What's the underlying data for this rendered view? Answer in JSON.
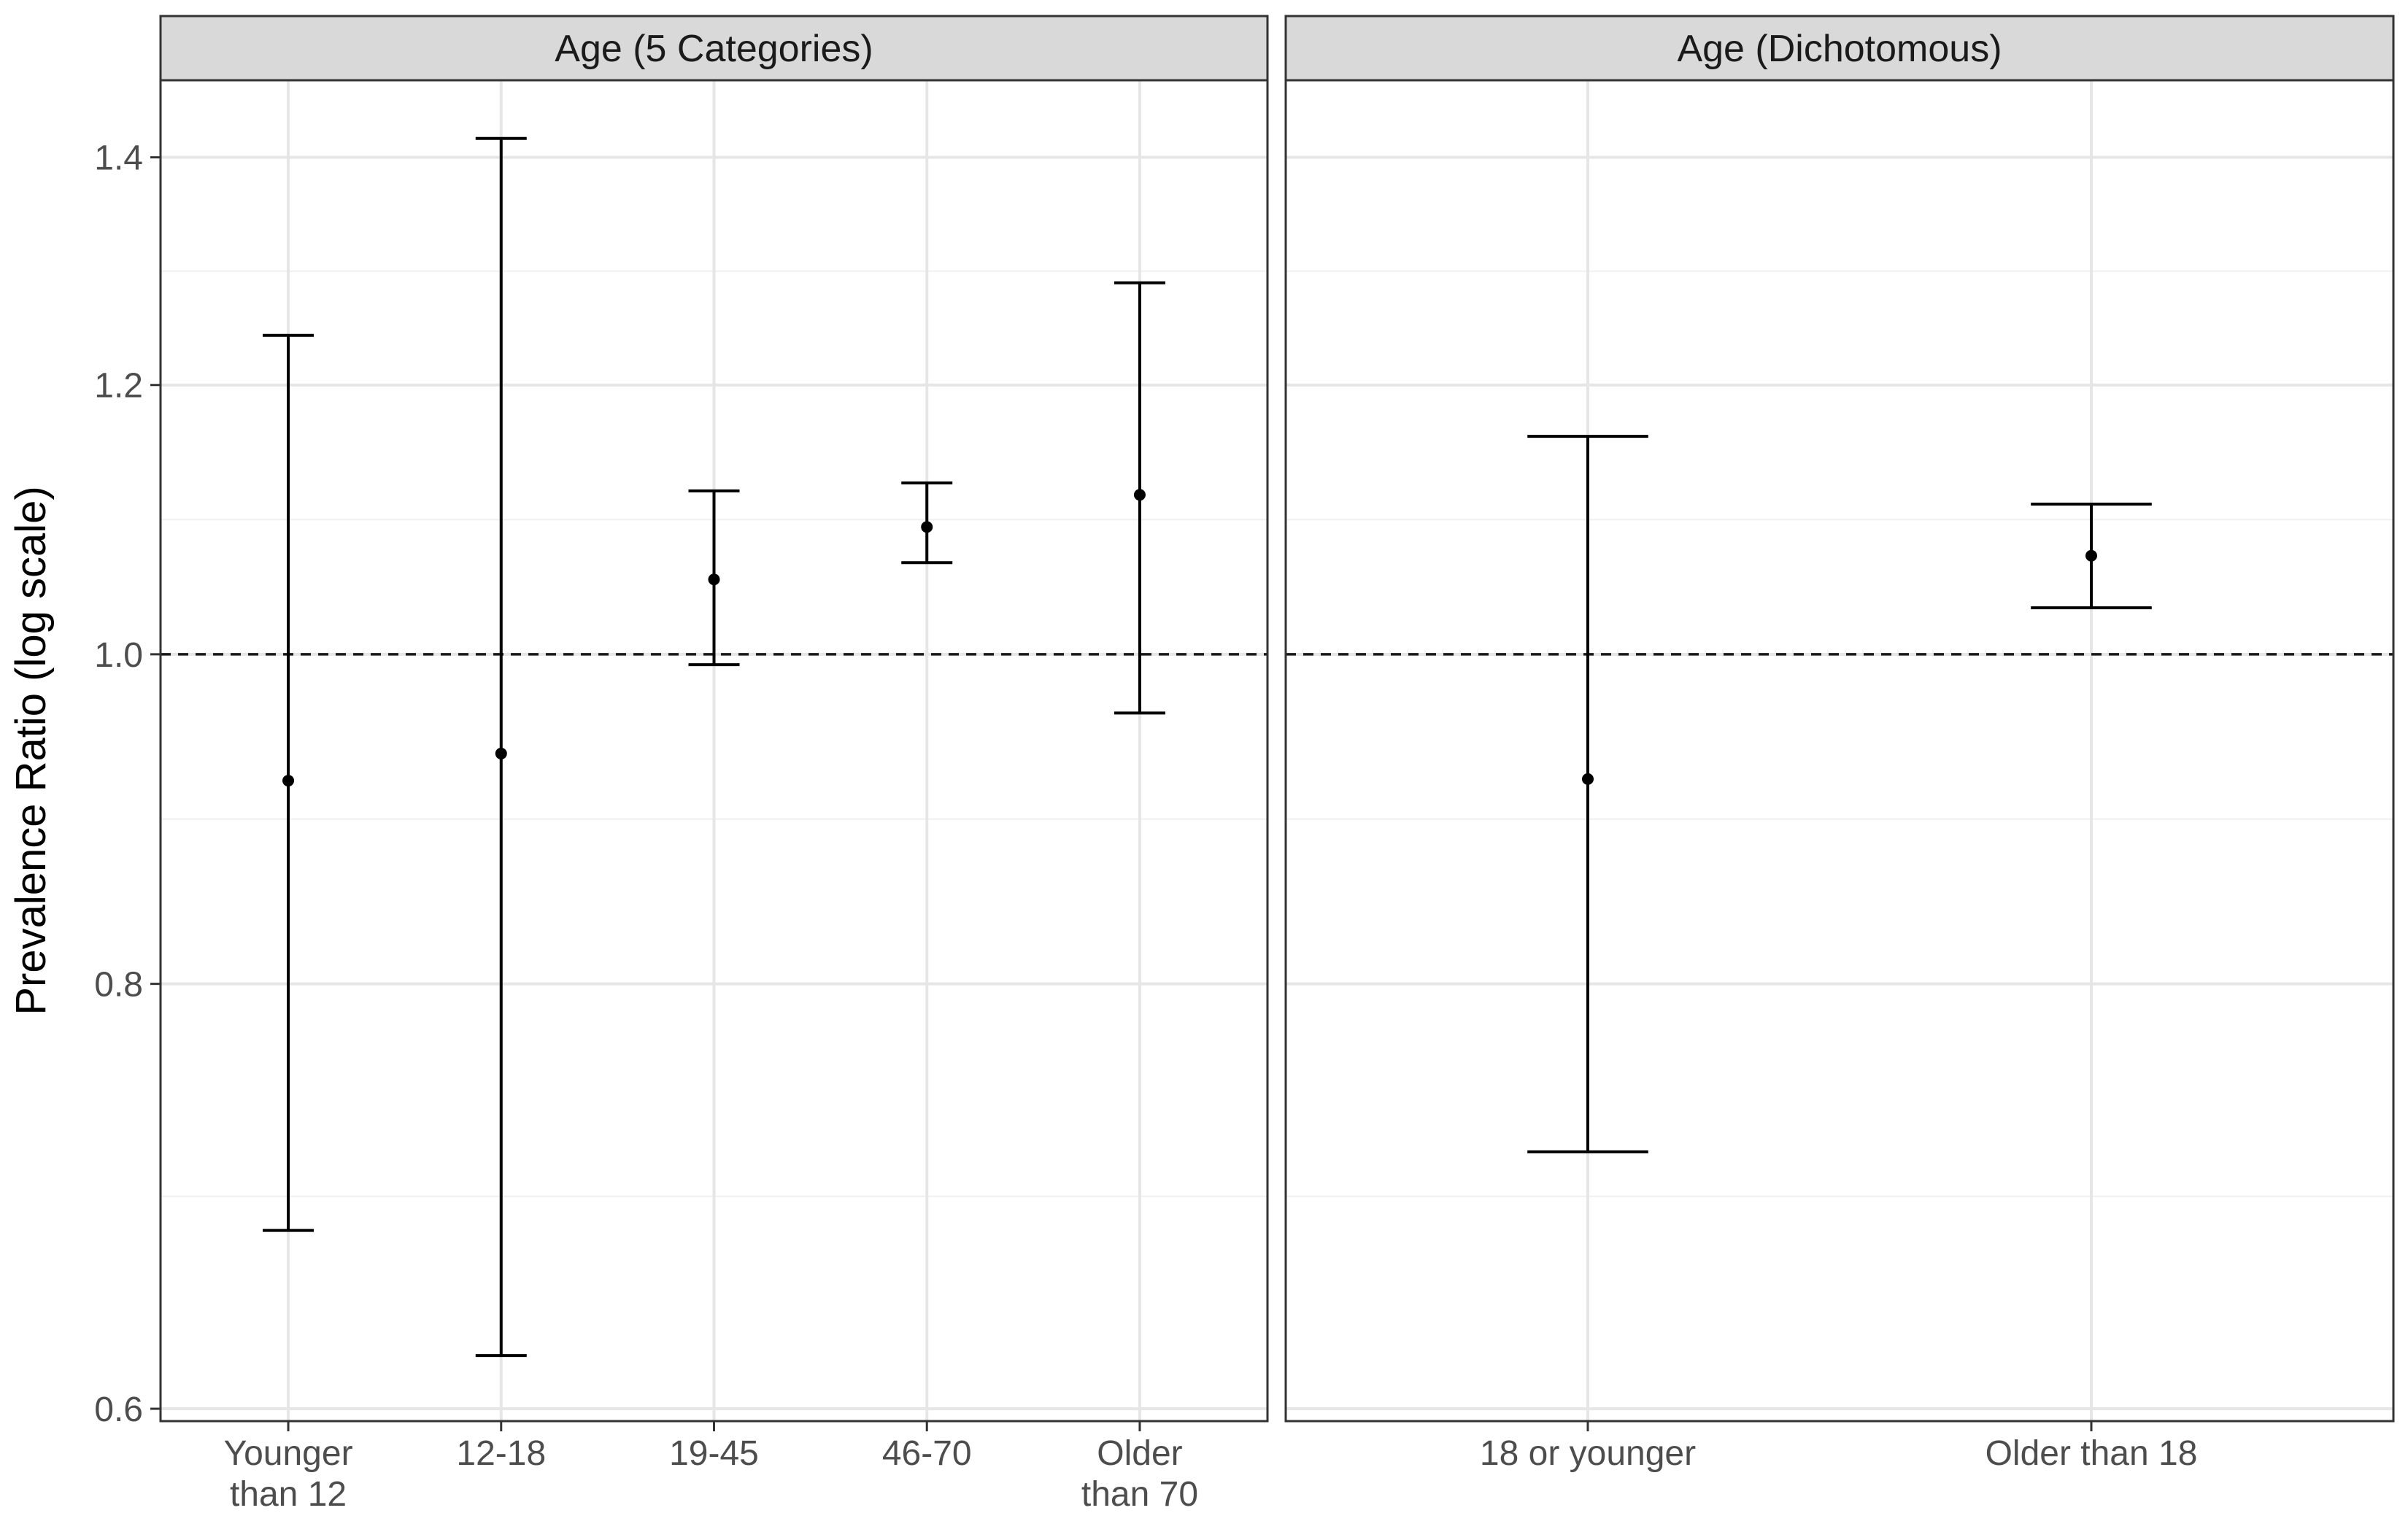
{
  "chart_data": {
    "type": "errorbar",
    "y_axis": {
      "label": "Prevalence Ratio (log scale)",
      "scale": "log",
      "ticks": [
        0.6,
        0.8,
        1.0,
        1.2,
        1.4
      ],
      "tick_labels": [
        "0.6",
        "0.8",
        "1.0",
        "1.2",
        "1.4"
      ],
      "range": [
        0.595,
        1.475
      ]
    },
    "reference_line": {
      "value": 1.0,
      "style": "dashed"
    },
    "grid": true,
    "panels": [
      {
        "title": "Age (5 Categories)",
        "categories": [
          [
            "Younger",
            "than 12"
          ],
          [
            "12-18"
          ],
          [
            "19-45"
          ],
          [
            "46-70"
          ],
          [
            "Older",
            "than 70"
          ]
        ],
        "estimate": [
          0.918,
          0.935,
          1.052,
          1.09,
          1.114
        ],
        "lower": [
          0.677,
          0.622,
          0.993,
          1.064,
          0.961
        ],
        "upper": [
          1.241,
          1.418,
          1.117,
          1.123,
          1.286
        ]
      },
      {
        "title": "Age (Dichotomous)",
        "categories": [
          [
            "18 or younger"
          ],
          [
            "Older than 18"
          ]
        ],
        "estimate": [
          0.919,
          1.069
        ],
        "lower": [
          0.714,
          1.032
        ],
        "upper": [
          1.159,
          1.107
        ]
      }
    ]
  }
}
